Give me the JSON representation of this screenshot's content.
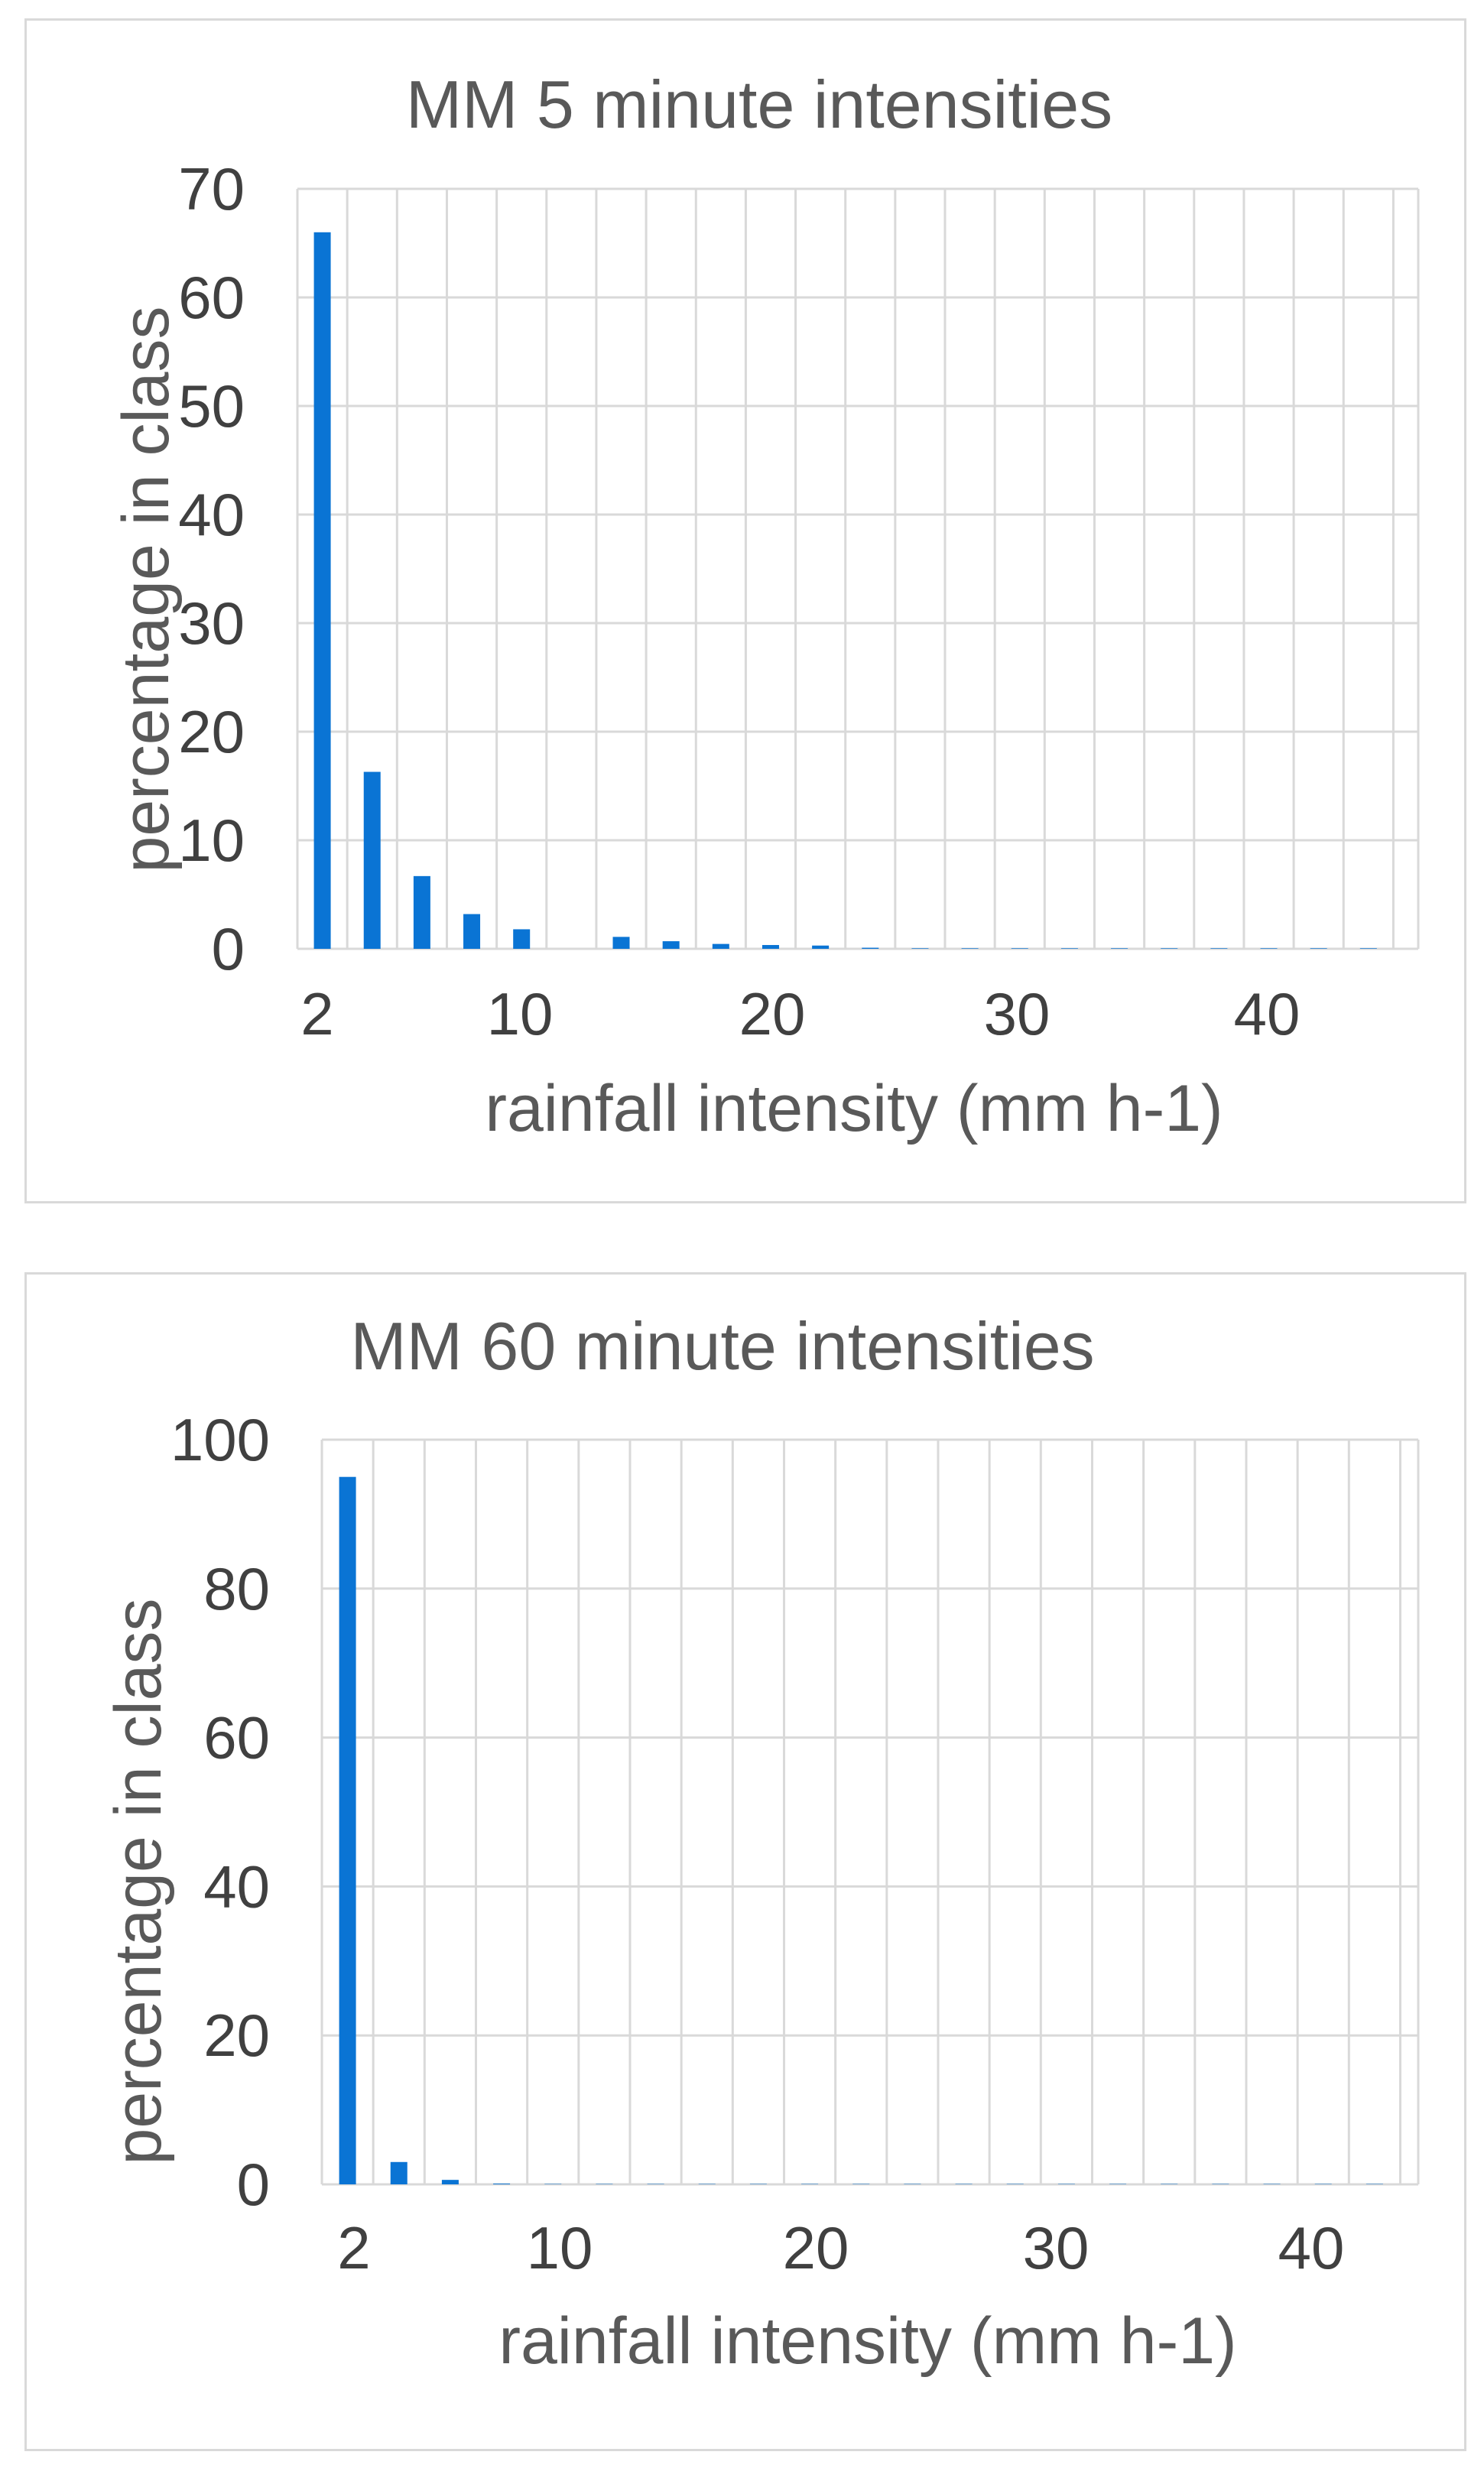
{
  "colors": {
    "bar": "#0a74d4",
    "grid": "#d9d9d9"
  },
  "chart_data": [
    {
      "type": "bar",
      "title": "MM 5 minute intensities",
      "xlabel": "rainfall intensity (mm h-1)",
      "ylabel": "percentage in class",
      "ylim": [
        0,
        70
      ],
      "yticks": [
        0,
        10,
        20,
        30,
        40,
        50,
        60,
        70
      ],
      "xtick_labels": [
        "2",
        "10",
        "20",
        "30",
        "40"
      ],
      "grid": true,
      "legend": "none",
      "categories": [
        2,
        4,
        6,
        8,
        10,
        12,
        14,
        16,
        18,
        20,
        22,
        24,
        26,
        28,
        30,
        32,
        34,
        36,
        38,
        40,
        42,
        44
      ],
      "values": [
        66,
        16.3,
        6.7,
        3.2,
        1.8,
        0,
        1.1,
        0.7,
        0.45,
        0.35,
        0.3,
        0.1,
        0.05,
        0.05,
        0.05,
        0.05,
        0.05,
        0.05,
        0.05,
        0.05,
        0.05,
        0.05
      ]
    },
    {
      "type": "bar",
      "title": "MM 60 minute intensities",
      "xlabel": "rainfall intensity (mm h-1)",
      "ylabel": "percentage in class",
      "ylim": [
        0,
        100
      ],
      "yticks": [
        0,
        20,
        40,
        60,
        80,
        100
      ],
      "xtick_labels": [
        "2",
        "10",
        "20",
        "30",
        "40"
      ],
      "grid": true,
      "legend": "none",
      "categories": [
        2,
        4,
        6,
        8,
        10,
        12,
        14,
        16,
        18,
        20,
        22,
        24,
        26,
        28,
        30,
        32,
        34,
        36,
        38,
        40,
        42
      ],
      "values": [
        95,
        3,
        0.6,
        0.1,
        0.05,
        0.05,
        0.05,
        0.05,
        0.05,
        0.05,
        0.05,
        0.05,
        0.05,
        0.05,
        0.05,
        0.05,
        0.05,
        0.05,
        0.05,
        0.05,
        0.05
      ]
    }
  ]
}
